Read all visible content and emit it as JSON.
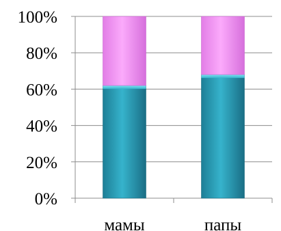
{
  "chart_data": {
    "type": "bar",
    "stacked": true,
    "percent": true,
    "categories": [
      "мамы",
      "папы"
    ],
    "series": [
      {
        "values": [
          62,
          68
        ],
        "color": "#2a9fb8"
      },
      {
        "values": [
          38,
          32
        ],
        "color": "#ee8ef0"
      }
    ],
    "ylim": [
      0,
      100
    ],
    "yticks": [
      "0%",
      "20%",
      "40%",
      "60%",
      "80%",
      "100%"
    ],
    "grid": true,
    "legend": "none"
  }
}
